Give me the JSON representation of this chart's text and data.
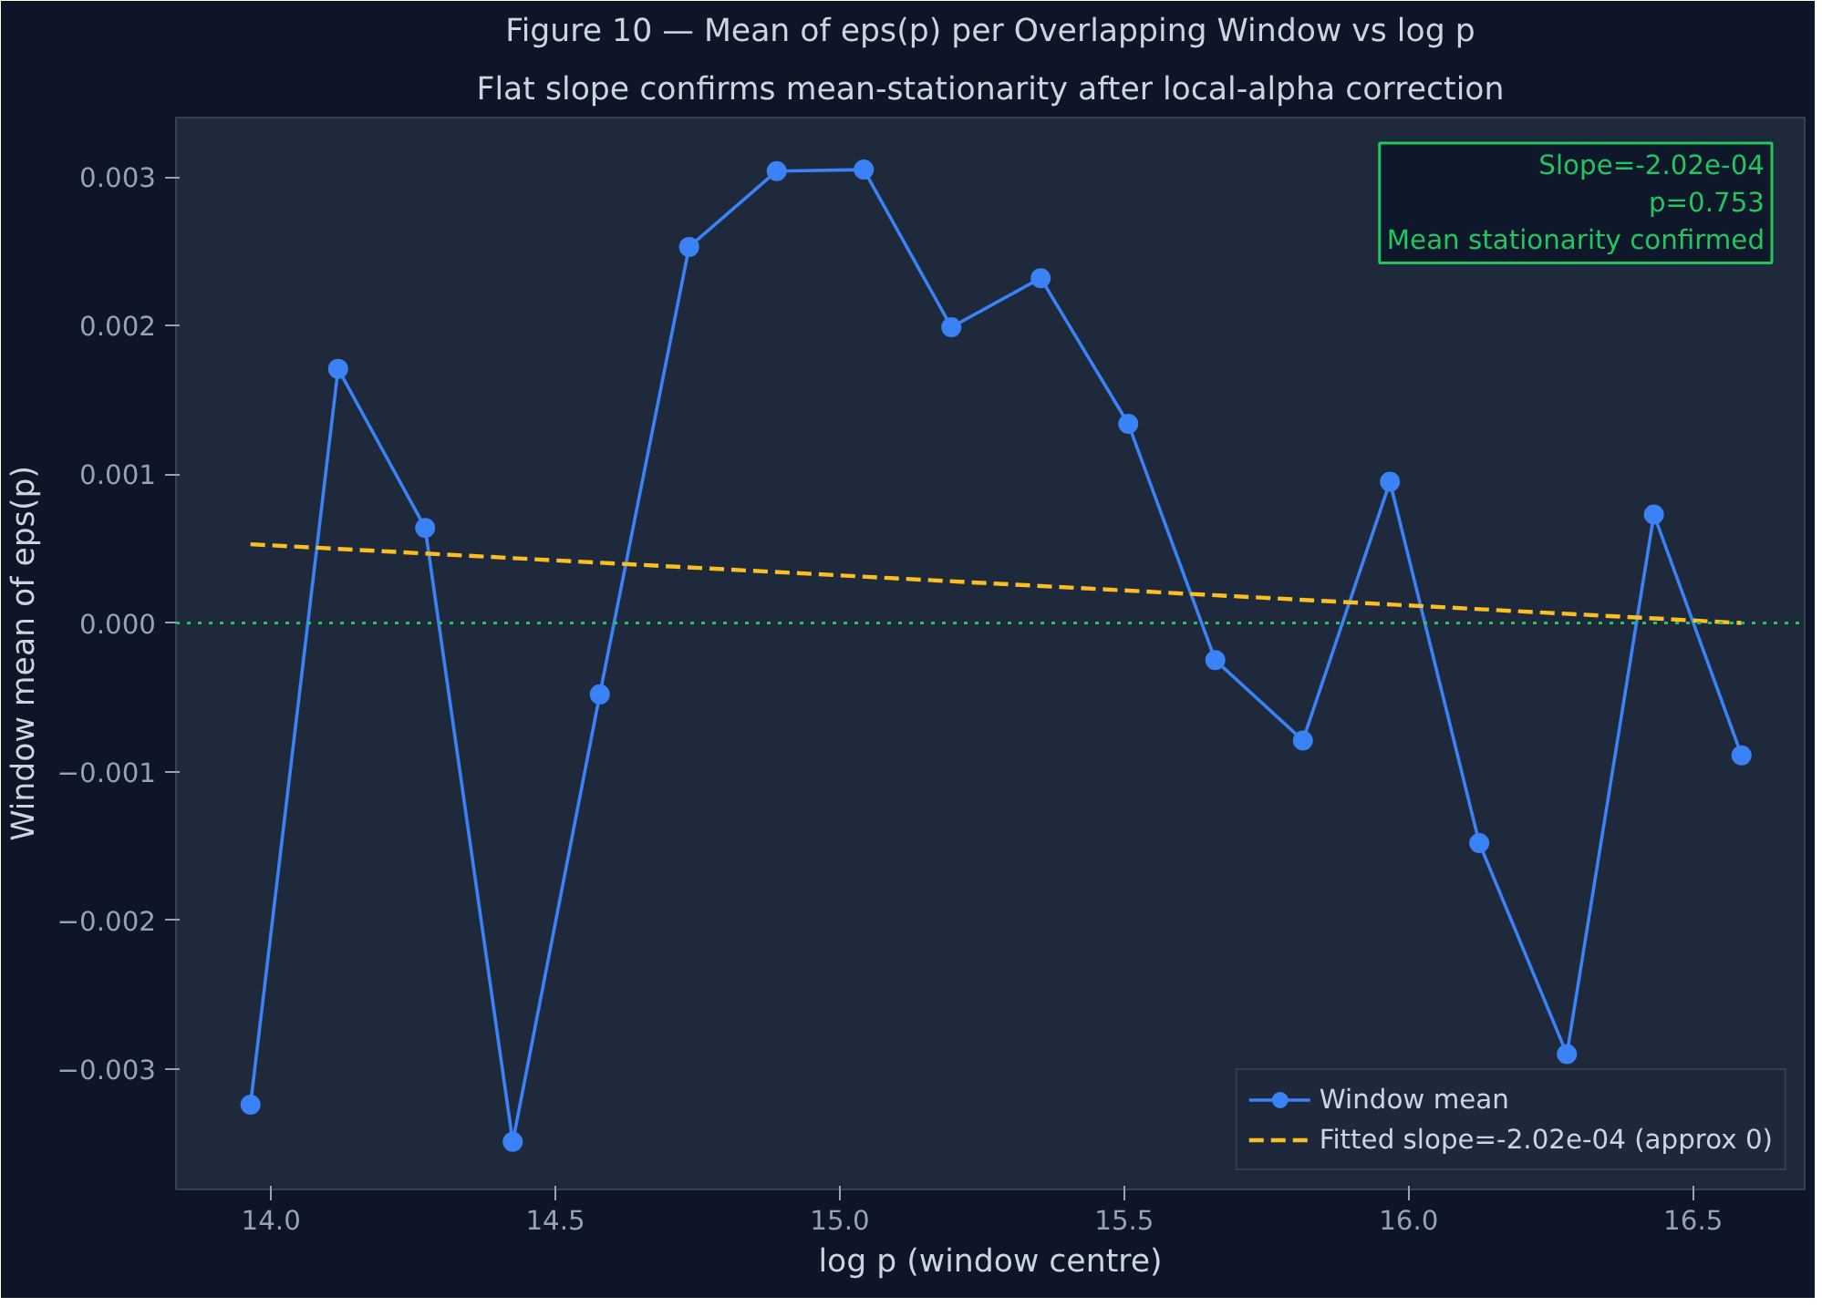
{
  "chart_data": {
    "type": "line",
    "title": "Figure 10 — Mean of eps(p) per Overlapping Window vs log p",
    "subtitle": "Flat slope confirms mean-stationarity after local-alpha correction",
    "xlabel": "log p (window centre)",
    "ylabel": "Window mean of eps(p)",
    "x": [
      13.964,
      14.118,
      14.271,
      14.425,
      14.578,
      14.735,
      14.889,
      15.042,
      15.196,
      15.353,
      15.507,
      15.66,
      15.814,
      15.967,
      16.124,
      16.278,
      16.431,
      16.585
    ],
    "series": [
      {
        "name": "Window mean",
        "color": "#3b82f6",
        "marker": "circle",
        "line_style": "solid",
        "values": [
          -0.00324,
          0.00171,
          0.00064,
          -0.00349,
          -0.00048,
          0.00253,
          0.00304,
          0.00305,
          0.00199,
          0.00232,
          0.00134,
          -0.00025,
          -0.00079,
          0.00095,
          -0.00148,
          -0.0029,
          0.00073,
          -0.00089
        ]
      },
      {
        "name": "Fitted slope=-2.02e-04 (approx 0)",
        "color": "#fbbf24",
        "marker": "none",
        "line_style": "dashed",
        "x": [
          13.964,
          16.585
        ],
        "values": [
          0.00053,
          0.0
        ]
      }
    ],
    "xlim": [
      13.833,
      16.696
    ],
    "ylim": [
      -0.00381,
      0.0034
    ],
    "xticks": [
      {
        "value": 14.0,
        "label": "14.0"
      },
      {
        "value": 14.5,
        "label": "14.5"
      },
      {
        "value": 15.0,
        "label": "15.0"
      },
      {
        "value": 15.5,
        "label": "15.5"
      },
      {
        "value": 16.0,
        "label": "16.0"
      },
      {
        "value": 16.5,
        "label": "16.5"
      }
    ],
    "yticks": [
      {
        "value": -0.003,
        "label": "−0.003"
      },
      {
        "value": -0.002,
        "label": "−0.002"
      },
      {
        "value": -0.001,
        "label": "−0.001"
      },
      {
        "value": 0.0,
        "label": "0.000"
      },
      {
        "value": 0.001,
        "label": "0.001"
      },
      {
        "value": 0.002,
        "label": "0.002"
      },
      {
        "value": 0.003,
        "label": "0.003"
      }
    ],
    "ref_lines": [
      {
        "axis": "y",
        "value": 0.0,
        "label": null,
        "color": "#22c55e",
        "line_style": "dotted"
      }
    ],
    "annotations": [
      "Slope=-2.02e-04",
      "p=0.753",
      "Mean stationarity confirmed"
    ],
    "grid": false,
    "legend": "bottom right"
  }
}
